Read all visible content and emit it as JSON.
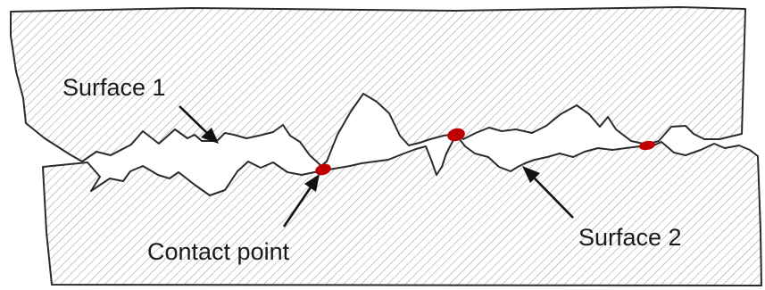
{
  "labels": {
    "surface_1": "Surface 1",
    "surface_2": "Surface 2",
    "contact_point": "Contact point"
  },
  "colors": {
    "outline": "#2b2b2b",
    "hatch": "#9a9a9a",
    "contact": "#c00000",
    "background": "#ffffff"
  },
  "contact_point_count": 3
}
